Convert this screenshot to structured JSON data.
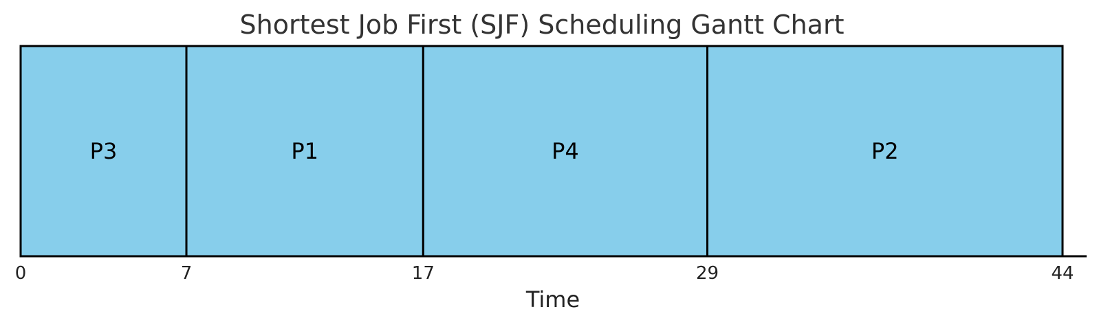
{
  "chart_data": {
    "type": "gantt",
    "title": "Shortest Job First (SJF) Scheduling Gantt Chart",
    "xlabel": "Time",
    "ylabel": "",
    "xlim": [
      0,
      44
    ],
    "grid": false,
    "bar_color": "#87CEEB",
    "edge_color": "#000000",
    "tasks": [
      {
        "name": "P3",
        "start": 0,
        "end": 7
      },
      {
        "name": "P1",
        "start": 7,
        "end": 17
      },
      {
        "name": "P4",
        "start": 17,
        "end": 29
      },
      {
        "name": "P2",
        "start": 29,
        "end": 44
      }
    ],
    "ticks": [
      "0",
      "7",
      "17",
      "29",
      "44"
    ]
  }
}
